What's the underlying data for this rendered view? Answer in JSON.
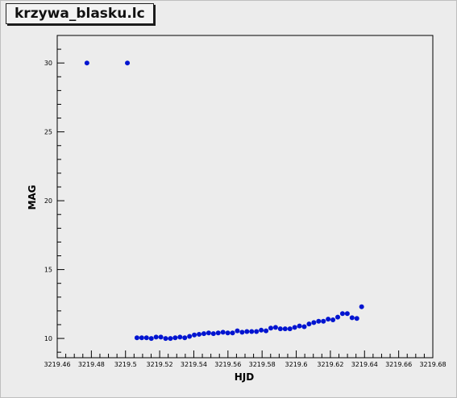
{
  "title": "krzywa_blasku.lc",
  "colors": {
    "background": "#ececec",
    "marker": "#0014d0",
    "axis": "#000000"
  },
  "chart_data": {
    "type": "scatter",
    "title": "krzywa_blasku.lc",
    "xlabel": "HJD",
    "ylabel": "MAG",
    "xlim": [
      3219.46,
      3219.68
    ],
    "ylim": [
      8.6,
      32.0
    ],
    "x_ticks": [
      3219.46,
      3219.48,
      3219.5,
      3219.52,
      3219.54,
      3219.56,
      3219.58,
      3219.6,
      3219.62,
      3219.64,
      3219.66,
      3219.68
    ],
    "x_tick_labels": [
      "3219.46",
      "3219.48",
      "3219.5",
      "3219.52",
      "3219.54",
      "3219.56",
      "3219.58",
      "3219.6",
      "3219.62",
      "3219.64",
      "3219.66",
      "3219.68"
    ],
    "y_ticks": [
      10,
      15,
      20,
      25,
      30
    ],
    "y_tick_labels": [
      "10",
      "15",
      "20",
      "25",
      "30"
    ],
    "grid": false,
    "series": [
      {
        "marker": "circle",
        "color": "#0014d0",
        "points": [
          [
            3219.4774,
            30.0
          ],
          [
            3219.5011,
            30.0
          ],
          [
            3219.5067,
            10.05
          ],
          [
            3219.5095,
            10.05
          ],
          [
            3219.5123,
            10.05
          ],
          [
            3219.5151,
            10.0
          ],
          [
            3219.5179,
            10.1
          ],
          [
            3219.5207,
            10.1
          ],
          [
            3219.5235,
            10.0
          ],
          [
            3219.5263,
            10.0
          ],
          [
            3219.5291,
            10.05
          ],
          [
            3219.5319,
            10.1
          ],
          [
            3219.5347,
            10.05
          ],
          [
            3219.5375,
            10.15
          ],
          [
            3219.5403,
            10.25
          ],
          [
            3219.5431,
            10.3
          ],
          [
            3219.5459,
            10.35
          ],
          [
            3219.5487,
            10.4
          ],
          [
            3219.5515,
            10.35
          ],
          [
            3219.5543,
            10.4
          ],
          [
            3219.5571,
            10.45
          ],
          [
            3219.5599,
            10.4
          ],
          [
            3219.5627,
            10.4
          ],
          [
            3219.5655,
            10.55
          ],
          [
            3219.5683,
            10.45
          ],
          [
            3219.5711,
            10.5
          ],
          [
            3219.5739,
            10.5
          ],
          [
            3219.5767,
            10.5
          ],
          [
            3219.5795,
            10.6
          ],
          [
            3219.5823,
            10.55
          ],
          [
            3219.5851,
            10.75
          ],
          [
            3219.5879,
            10.8
          ],
          [
            3219.5907,
            10.7
          ],
          [
            3219.5935,
            10.7
          ],
          [
            3219.5963,
            10.7
          ],
          [
            3219.5991,
            10.8
          ],
          [
            3219.6019,
            10.9
          ],
          [
            3219.6047,
            10.85
          ],
          [
            3219.6075,
            11.05
          ],
          [
            3219.6103,
            11.15
          ],
          [
            3219.6131,
            11.25
          ],
          [
            3219.6159,
            11.25
          ],
          [
            3219.6187,
            11.4
          ],
          [
            3219.6215,
            11.35
          ],
          [
            3219.6243,
            11.55
          ],
          [
            3219.6271,
            11.8
          ],
          [
            3219.6299,
            11.8
          ],
          [
            3219.6327,
            11.5
          ],
          [
            3219.6355,
            11.45
          ],
          [
            3219.6383,
            12.3
          ]
        ]
      }
    ]
  }
}
